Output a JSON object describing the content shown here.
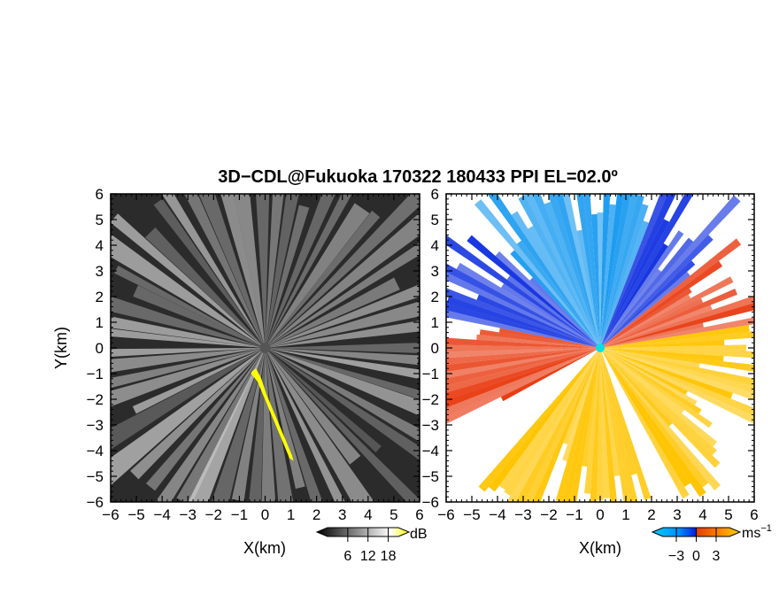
{
  "title": "3D−CDL@Fukuoka 170322 180433 PPI EL=02.0º",
  "chart_data": [
    {
      "type": "heatmap",
      "field": "backscatter intensity",
      "xlabel": "X(km)",
      "ylabel": "Y(km)",
      "xlim": [
        -6,
        6
      ],
      "ylim": [
        -6,
        6
      ],
      "xticks": [
        "−6",
        "−5",
        "−4",
        "−3",
        "−2",
        "−1",
        "0",
        "1",
        "2",
        "3",
        "4",
        "5",
        "6"
      ],
      "yticks": [
        "−6",
        "−5",
        "−4",
        "−3",
        "−2",
        "−1",
        "0",
        "1",
        "2",
        "3",
        "4",
        "5",
        "6"
      ],
      "colorbar": {
        "unit": "dB",
        "ticks": [
          "6",
          "12",
          "18"
        ],
        "tick_values": [
          6,
          12,
          18
        ],
        "range": [
          0,
          21
        ],
        "colors": [
          "#000000",
          "#ffffff",
          "#ffff00"
        ]
      },
      "colors": {
        "background": "#2b2b2b",
        "beam": "#d8d8d8",
        "echo": "#ffff00",
        "site": "#555555"
      }
    },
    {
      "type": "heatmap",
      "field": "radial velocity",
      "xlabel": "X(km)",
      "ylabel": "",
      "xlim": [
        -6,
        6
      ],
      "ylim": [
        -6,
        6
      ],
      "xticks": [
        "−6",
        "−5",
        "−4",
        "−3",
        "−2",
        "−1",
        "0",
        "1",
        "2",
        "3",
        "4",
        "5",
        "6"
      ],
      "yticks": [
        "−6",
        "−5",
        "−4",
        "−3",
        "−2",
        "−1",
        "0",
        "1",
        "2",
        "3",
        "4",
        "5",
        "6"
      ],
      "colorbar": {
        "unit": "ms",
        "unit_superscript": "−1",
        "ticks": [
          "−3",
          "0",
          "3"
        ],
        "tick_values": [
          -3,
          0,
          3
        ],
        "range": [
          -5,
          5
        ],
        "colors": [
          "#00ccff",
          "#0090ff",
          "#0020e0",
          "#e04000",
          "#ff8000",
          "#ffd000"
        ]
      },
      "colors": {
        "approaching_light": "#1e9cf0",
        "approaching_dark": "#1030e0",
        "receding_dark": "#e83a10",
        "receding_light": "#ffc400",
        "site": "#00e0e0"
      }
    }
  ]
}
